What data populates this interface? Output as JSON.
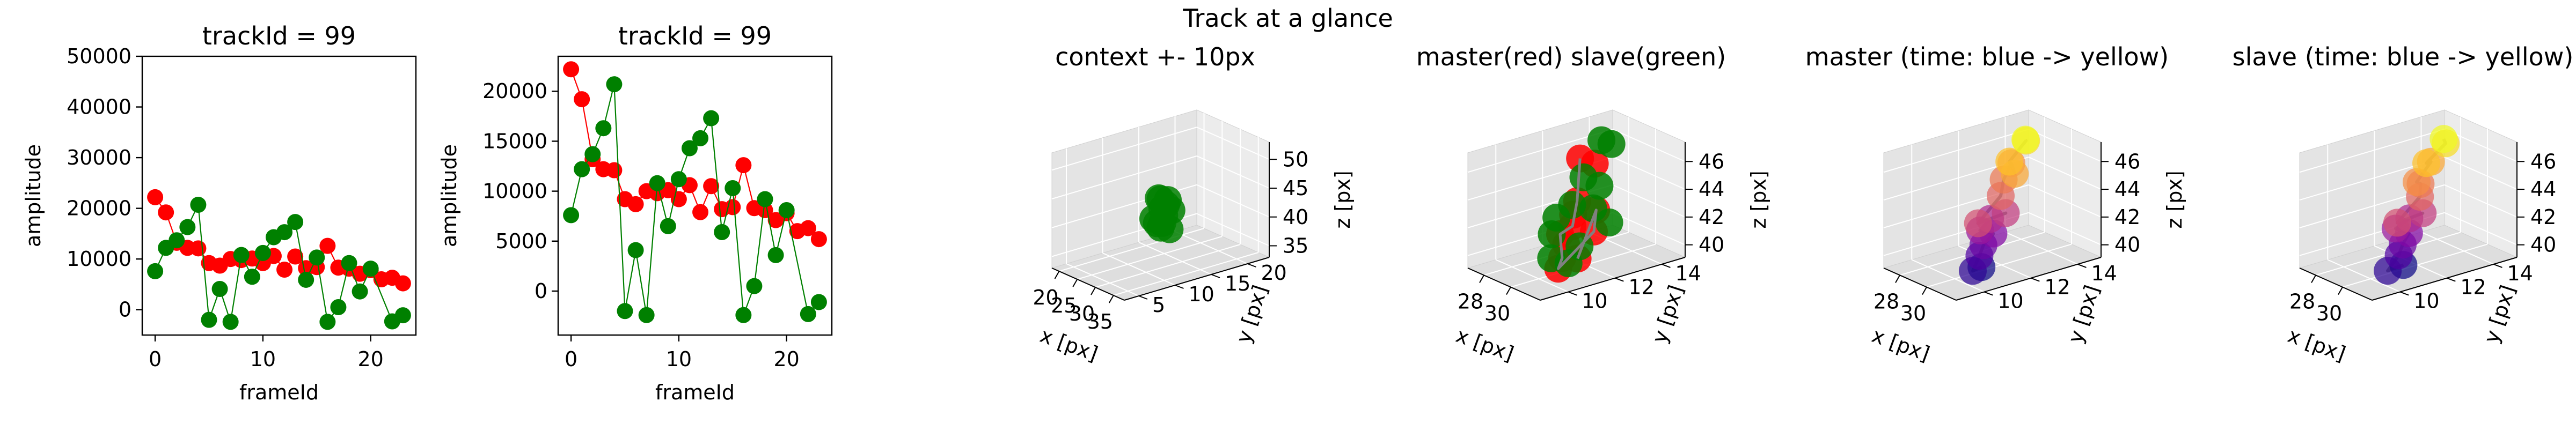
{
  "figure": {
    "suptitle": "Track at a glance"
  },
  "chart_data": [
    {
      "type": "line",
      "title": "trackId = 99",
      "xlabel": "frameId",
      "ylabel": "amplitude",
      "xlim": [
        -1.2,
        24.2
      ],
      "ylim": [
        -5000,
        50000
      ],
      "xticks": [
        0,
        10,
        20
      ],
      "yticks": [
        0,
        10000,
        20000,
        30000,
        40000,
        50000
      ],
      "grid": false,
      "series": [
        {
          "color": "#ff0000",
          "x": [
            0,
            1,
            2,
            3,
            4,
            5,
            6,
            7,
            8,
            9,
            10,
            11,
            12,
            13,
            14,
            15,
            16,
            17,
            18,
            19,
            20,
            21,
            22,
            23
          ],
          "values": [
            22200,
            19200,
            13200,
            12200,
            12100,
            9200,
            8700,
            10000,
            9800,
            10100,
            9200,
            10600,
            7900,
            10500,
            8200,
            8400,
            12600,
            8300,
            8100,
            7100,
            7800,
            6000,
            6300,
            5200
          ]
        },
        {
          "color": "#008000",
          "x": [
            0,
            1,
            2,
            3,
            4,
            5,
            6,
            7,
            8,
            9,
            10,
            11,
            12,
            13,
            14,
            15,
            16,
            17,
            18,
            19,
            20,
            21,
            22,
            23
          ],
          "values": [
            7600,
            12200,
            13700,
            16300,
            20700,
            -2000,
            4100,
            -2400,
            10800,
            6500,
            11200,
            14300,
            15300,
            17300,
            5900,
            10300,
            -2400,
            500,
            9200,
            3600,
            8100,
            null,
            -2300,
            -1100
          ]
        }
      ]
    },
    {
      "type": "line",
      "title": "trackId = 99",
      "xlabel": "frameId",
      "ylabel": "amplitude",
      "xlim": [
        -1.2,
        24.2
      ],
      "ylim": [
        -4400,
        23500
      ],
      "xticks": [
        0,
        10,
        20
      ],
      "yticks": [
        0,
        5000,
        10000,
        15000,
        20000
      ],
      "grid": false,
      "series": [
        {
          "color": "#ff0000",
          "x": [
            0,
            1,
            2,
            3,
            4,
            5,
            6,
            7,
            8,
            9,
            10,
            11,
            12,
            13,
            14,
            15,
            16,
            17,
            18,
            19,
            20,
            21,
            22,
            23
          ],
          "values": [
            22200,
            19200,
            13200,
            12200,
            12100,
            9200,
            8700,
            10000,
            9800,
            10100,
            9200,
            10600,
            7900,
            10500,
            8200,
            8400,
            12600,
            8300,
            8100,
            7100,
            7800,
            6000,
            6300,
            5200
          ]
        },
        {
          "color": "#008000",
          "x": [
            0,
            1,
            2,
            3,
            4,
            5,
            6,
            7,
            8,
            9,
            10,
            11,
            12,
            13,
            14,
            15,
            16,
            17,
            18,
            19,
            20,
            21,
            22,
            23
          ],
          "values": [
            7600,
            12200,
            13700,
            16300,
            20700,
            -2000,
            4100,
            -2400,
            10800,
            6500,
            11200,
            14300,
            15300,
            17300,
            5900,
            10300,
            -2400,
            500,
            9200,
            3600,
            8100,
            null,
            -2300,
            -1100
          ]
        }
      ]
    },
    {
      "type": "scatter",
      "title": "context +- 10px",
      "xlabel": "x [px]",
      "ylabel": "y [px]",
      "zlabel": "z [px]",
      "xlim": [
        18,
        38
      ],
      "ylim": [
        3,
        23
      ],
      "zlim": [
        33,
        53
      ],
      "xticks": [
        20,
        25,
        30,
        35
      ],
      "yticks": [
        5,
        10,
        15,
        20
      ],
      "zticks": [
        35,
        40,
        45,
        50
      ],
      "series": [
        {
          "color": "#008000",
          "points": [
            [
              28,
              13,
              44
            ],
            [
              28.5,
              13.5,
              43
            ],
            [
              29,
              14,
              42
            ],
            [
              28,
              12,
              41
            ],
            [
              29.5,
              12.5,
              40.5
            ],
            [
              30,
              12,
              40
            ],
            [
              28.5,
              13,
              42.5
            ],
            [
              29,
              13,
              41.5
            ],
            [
              28,
              14,
              43.5
            ],
            [
              30.5,
              13,
              39.5
            ],
            [
              29,
              12,
              40.5
            ],
            [
              28.5,
              12.5,
              44.5
            ]
          ]
        }
      ]
    },
    {
      "type": "scatter",
      "title": "master(red) slave(green)",
      "xlabel": "x [px]",
      "ylabel": "y [px]",
      "zlabel": "z [px]",
      "xlim": [
        26.8,
        32.2
      ],
      "ylim": [
        8.8,
        15
      ],
      "zlim": [
        39.1,
        47.4
      ],
      "xticks": [
        28,
        30
      ],
      "yticks": [
        10,
        12,
        14
      ],
      "zticks": [
        40,
        42,
        44,
        46
      ],
      "series": [
        {
          "name": "master",
          "color": "#ff0000",
          "marker_only": true,
          "points": [
            [
              28.2,
              12.8,
              45.6
            ],
            [
              28.6,
              13.2,
              45.2
            ],
            [
              29.2,
              12.1,
              43.3
            ],
            [
              29.6,
              11.7,
              42.7
            ],
            [
              29.9,
              11.5,
              42.1
            ],
            [
              30.3,
              11.0,
              41.2
            ],
            [
              30.7,
              10.6,
              40.6
            ],
            [
              31.1,
              10.2,
              40.2
            ],
            [
              31.5,
              10.8,
              40.8
            ],
            [
              30.1,
              12.4,
              42.9
            ],
            [
              29.5,
              11.2,
              41.5
            ],
            [
              30.8,
              11.9,
              41.9
            ]
          ]
        },
        {
          "name": "slave",
          "color": "#008000",
          "marker_only": true,
          "points": [
            [
              28.4,
              13.6,
              46.6
            ],
            [
              28.1,
              14.2,
              45.9
            ],
            [
              28.8,
              12.6,
              44.6
            ],
            [
              29.3,
              13.0,
              44.0
            ],
            [
              29.0,
              12.0,
              43.0
            ],
            [
              29.7,
              12.5,
              42.8
            ],
            [
              28.7,
              11.5,
              42.2
            ],
            [
              30.2,
              12.9,
              41.8
            ],
            [
              30.6,
              11.4,
              41.0
            ],
            [
              31.0,
              10.7,
              40.3
            ],
            [
              29.4,
              10.9,
              41.6
            ],
            [
              30.4,
              10.3,
              40.6
            ]
          ]
        },
        {
          "name": "trajectory",
          "color": "#808080",
          "line_only": true,
          "points": [
            [
              28.2,
              12.8,
              45.6
            ],
            [
              29.2,
              12.1,
              43.3
            ],
            [
              29.9,
              11.5,
              42.1
            ],
            [
              29.5,
              11.2,
              41.5
            ],
            [
              30.7,
              10.6,
              40.6
            ],
            [
              31.1,
              10.2,
              40.2
            ],
            [
              30.8,
              11.9,
              41.9
            ],
            [
              30.1,
              12.4,
              42.9
            ],
            [
              31.5,
              10.8,
              40.8
            ]
          ]
        }
      ]
    },
    {
      "type": "scatter",
      "title": "master (time: blue -> yellow)",
      "xlabel": "x [px]",
      "ylabel": "y [px]",
      "zlabel": "z [px]",
      "xlim": [
        26.8,
        32.2
      ],
      "ylim": [
        8.8,
        15
      ],
      "zlim": [
        39.1,
        47.4
      ],
      "xticks": [
        28,
        30
      ],
      "yticks": [
        10,
        12,
        14
      ],
      "zticks": [
        40,
        42,
        44,
        46
      ],
      "colormap": "plasma",
      "series": [
        {
          "color": "#808080",
          "points": [
            [
              31.3,
              10.4,
              40.3
            ],
            [
              31.0,
              10.2,
              40.0
            ],
            [
              30.8,
              10.6,
              40.8
            ],
            [
              30.4,
              11.0,
              41.2
            ],
            [
              30.1,
              11.6,
              41.6
            ],
            [
              29.8,
              11.2,
              41.9
            ],
            [
              29.5,
              11.8,
              42.3
            ],
            [
              29.8,
              12.3,
              42.6
            ],
            [
              29.3,
              11.4,
              42.1
            ],
            [
              28.9,
              12.6,
              43.3
            ],
            [
              28.6,
              12.9,
              44.2
            ],
            [
              28.3,
              13.4,
              45.0
            ],
            [
              28.9,
              13.2,
              44.6
            ],
            [
              29.2,
              12.8,
              45.8
            ],
            [
              28.7,
              13.8,
              46.6
            ],
            [
              29.0,
              13.6,
              46.9
            ]
          ]
        }
      ]
    },
    {
      "type": "scatter",
      "title": "slave (time: blue -> yellow)",
      "xlabel": "x [px]",
      "ylabel": "y [px]",
      "zlabel": "z [px]",
      "xlim": [
        26.8,
        32.2
      ],
      "ylim": [
        8.8,
        15
      ],
      "zlim": [
        39.1,
        47.4
      ],
      "xticks": [
        28,
        30
      ],
      "yticks": [
        10,
        12,
        14
      ],
      "zticks": [
        40,
        42,
        44,
        46
      ],
      "colormap": "plasma",
      "series": [
        {
          "color": "#808080",
          "points": [
            [
              31.4,
              10.6,
              40.4
            ],
            [
              31.1,
              10.1,
              40.1
            ],
            [
              30.7,
              10.8,
              40.7
            ],
            [
              30.3,
              11.2,
              41.1
            ],
            [
              29.9,
              11.7,
              41.5
            ],
            [
              29.6,
              11.3,
              41.9
            ],
            [
              29.4,
              12.0,
              42.2
            ],
            [
              29.7,
              12.4,
              42.5
            ],
            [
              29.2,
              11.6,
              42.0
            ],
            [
              28.8,
              12.8,
              43.1
            ],
            [
              28.5,
              13.0,
              43.8
            ],
            [
              28.9,
              12.6,
              44.3
            ],
            [
              28.4,
              13.5,
              45.1
            ],
            [
              29.1,
              12.9,
              45.6
            ],
            [
              28.8,
              13.9,
              46.4
            ],
            [
              29.0,
              13.7,
              46.9
            ]
          ]
        }
      ]
    }
  ]
}
